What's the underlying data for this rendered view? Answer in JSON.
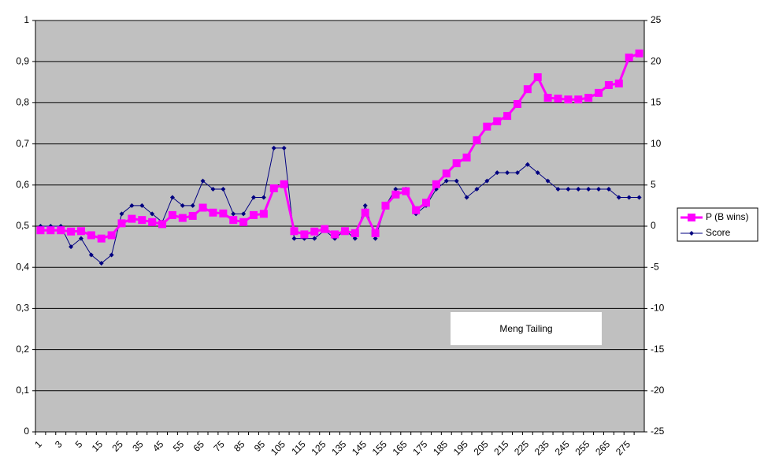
{
  "chart_data": {
    "type": "line",
    "annotation": "Meng Tailing",
    "categories": [
      "1",
      null,
      "3",
      null,
      "5",
      null,
      "15",
      null,
      "25",
      null,
      "35",
      null,
      "45",
      null,
      "55",
      null,
      "65",
      null,
      "75",
      null,
      "85",
      null,
      "95",
      null,
      "105",
      null,
      "115",
      null,
      "125",
      null,
      "135",
      null,
      "145",
      null,
      "155",
      null,
      "165",
      null,
      "175",
      null,
      "185",
      null,
      "195",
      null,
      "205",
      null,
      "215",
      null,
      "225",
      null,
      "235",
      null,
      "245",
      null,
      "255",
      null,
      "265",
      null,
      "275",
      null
    ],
    "series": [
      {
        "name": "P (B wins)",
        "color": "#ff00ff",
        "marker": "square",
        "axis": "y",
        "values": [
          0.49,
          0.49,
          0.49,
          0.487,
          0.488,
          0.478,
          0.47,
          0.478,
          0.507,
          0.518,
          0.515,
          0.51,
          0.505,
          0.527,
          0.52,
          0.525,
          0.545,
          0.533,
          0.531,
          0.515,
          0.51,
          0.527,
          0.53,
          0.592,
          0.602,
          0.488,
          0.48,
          0.487,
          0.493,
          0.48,
          0.488,
          0.483,
          0.533,
          0.483,
          0.55,
          0.577,
          0.585,
          0.539,
          0.557,
          0.602,
          0.628,
          0.653,
          0.667,
          0.709,
          0.742,
          0.755,
          0.768,
          0.797,
          0.833,
          0.862,
          0.812,
          0.81,
          0.808,
          0.808,
          0.812,
          0.824,
          0.843,
          0.847,
          0.91,
          0.92
        ]
      },
      {
        "name": "Score",
        "color": "#000080",
        "marker": "diamond",
        "axis": "y2",
        "values": [
          0,
          0,
          0,
          -2.5,
          -1.5,
          -3.5,
          -4.5,
          -3.5,
          1.5,
          2.5,
          2.5,
          1.5,
          0.5,
          3.5,
          2.5,
          2.5,
          5.5,
          4.5,
          4.5,
          1.5,
          1.5,
          3.5,
          3.5,
          9.5,
          9.5,
          -1.5,
          -1.5,
          -1.5,
          -0.5,
          -1.5,
          -0.5,
          -1.5,
          2.5,
          -1.5,
          2.5,
          4.5,
          4.5,
          1.5,
          2.5,
          4.5,
          5.5,
          5.5,
          3.5,
          4.5,
          5.5,
          6.5,
          6.5,
          6.5,
          7.5,
          6.5,
          5.5,
          4.5,
          4.5,
          4.5,
          4.5,
          4.5,
          4.5,
          3.5,
          3.5,
          3.5
        ]
      }
    ],
    "ylim": [
      0,
      1
    ],
    "yticks": [
      0,
      {
        "value": 0.1,
        "label": "0,1"
      },
      {
        "value": 0.2,
        "label": "0,2"
      },
      {
        "value": 0.3,
        "label": "0,3"
      },
      {
        "value": 0.4,
        "label": "0,4"
      },
      {
        "value": 0.5,
        "label": "0,5"
      },
      {
        "value": 0.6,
        "label": "0,6"
      },
      {
        "value": 0.7,
        "label": "0,7"
      },
      {
        "value": 0.8,
        "label": "0,8"
      },
      {
        "value": 0.9,
        "label": "0,9"
      },
      1
    ],
    "y2lim": [
      -25,
      25
    ],
    "y2ticks": [
      -25,
      -20,
      -15,
      -10,
      -5,
      0,
      5,
      10,
      15,
      20,
      25
    ],
    "grid": true,
    "legend": "right"
  }
}
